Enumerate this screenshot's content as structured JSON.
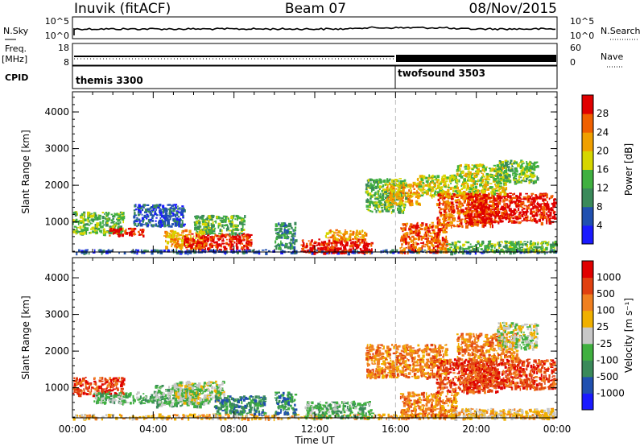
{
  "header": {
    "station": "Inuvik (fitACF)",
    "beam": "Beam 07",
    "date": "08/Nov/2015"
  },
  "nsky_panel": {
    "left_label": "N.Sky",
    "right_label": "N.Search",
    "yticks_left": [
      "10^5",
      "10^0"
    ],
    "yticks_right": [
      "10^5",
      "10^0"
    ]
  },
  "freq_panel": {
    "left_label_top": "Freq.",
    "left_label_bottom": "[MHz]",
    "right_label": "Nave",
    "yticks_left": [
      "18",
      "8"
    ],
    "yticks_right": [
      "60",
      "0"
    ]
  },
  "cpid_panel": {
    "label": "CPID",
    "segments": [
      {
        "name": "themis 3300",
        "start_hour": 0,
        "end_hour": 16
      },
      {
        "name": "twofsound 3503",
        "start_hour": 16,
        "end_hour": 24
      }
    ]
  },
  "colors": {
    "power": [
      "#1a1aff",
      "#2050b0",
      "#3a8a5a",
      "#40b040",
      "#d6d600",
      "#f0a000",
      "#f06000",
      "#e00000"
    ],
    "velocity": [
      "#1a1aff",
      "#2050b0",
      "#3a8a5a",
      "#40b040",
      "#c8c8c8",
      "#f0b000",
      "#f08020",
      "#e04010",
      "#e00000"
    ]
  },
  "chart_data": [
    {
      "type": "heatmap",
      "title": "Power",
      "xlabel": "Time UT",
      "ylabel": "Slant Range [km]",
      "xlim": [
        0,
        24
      ],
      "ylim": [
        180,
        4550
      ],
      "xticks": [
        "00:00",
        "04:00",
        "08:00",
        "12:00",
        "16:00",
        "20:00",
        "00:00"
      ],
      "yticks": [
        "1000",
        "2000",
        "3000",
        "4000"
      ],
      "colorbar": {
        "label": "Power [dB]",
        "ticks": [
          "4",
          "8",
          "12",
          "16",
          "20",
          "24",
          "28"
        ]
      },
      "regions": [
        {
          "t0": 0,
          "t1": 2.5,
          "r0": 700,
          "r1": 1300,
          "level": 3
        },
        {
          "t0": 1.8,
          "t1": 3.5,
          "r0": 650,
          "r1": 850,
          "level": 7
        },
        {
          "t0": 3.0,
          "t1": 5.5,
          "r0": 900,
          "r1": 1500,
          "level": 1
        },
        {
          "t0": 4.5,
          "t1": 6.5,
          "r0": 300,
          "r1": 800,
          "level": 5
        },
        {
          "t0": 5.5,
          "t1": 8.8,
          "r0": 250,
          "r1": 700,
          "level": 7
        },
        {
          "t0": 6.0,
          "t1": 8.5,
          "r0": 700,
          "r1": 1200,
          "level": 3
        },
        {
          "t0": 0,
          "t1": 24,
          "r0": 180,
          "r1": 260,
          "level": 1
        },
        {
          "t0": 10.0,
          "t1": 11.0,
          "r0": 300,
          "r1": 1000,
          "level": 2
        },
        {
          "t0": 11.3,
          "t1": 14.8,
          "r0": 180,
          "r1": 550,
          "level": 7
        },
        {
          "t0": 12.5,
          "t1": 14.5,
          "r0": 550,
          "r1": 800,
          "level": 5
        },
        {
          "t0": 14.5,
          "t1": 16.5,
          "r0": 1300,
          "r1": 2200,
          "level": 3
        },
        {
          "t0": 15.5,
          "t1": 17.2,
          "r0": 1500,
          "r1": 2100,
          "level": 5
        },
        {
          "t0": 16.2,
          "t1": 18.5,
          "r0": 200,
          "r1": 1000,
          "level": 6
        },
        {
          "t0": 17.0,
          "t1": 19.0,
          "r0": 1700,
          "r1": 2300,
          "level": 4
        },
        {
          "t0": 18.0,
          "t1": 21.0,
          "r0": 900,
          "r1": 1800,
          "level": 6
        },
        {
          "t0": 19.5,
          "t1": 23.9,
          "r0": 1000,
          "r1": 1800,
          "level": 7
        },
        {
          "t0": 19.0,
          "t1": 21.5,
          "r0": 1800,
          "r1": 2600,
          "level": 4
        },
        {
          "t0": 18.5,
          "t1": 23.9,
          "r0": 200,
          "r1": 500,
          "level": 3
        },
        {
          "t0": 21.0,
          "t1": 23.0,
          "r0": 2100,
          "r1": 2700,
          "level": 3
        }
      ]
    },
    {
      "type": "heatmap",
      "title": "Velocity",
      "xlabel": "Time UT",
      "ylabel": "Slant Range [km]",
      "xlim": [
        0,
        24
      ],
      "ylim": [
        180,
        4550
      ],
      "xticks": [
        "00:00",
        "04:00",
        "08:00",
        "12:00",
        "16:00",
        "20:00",
        "00:00"
      ],
      "yticks": [
        "1000",
        "2000",
        "3000",
        "4000"
      ],
      "colorbar": {
        "label": "Velocity [m s⁻¹]",
        "ticks": [
          "1000",
          "500",
          "100",
          "25",
          "-25",
          "-100",
          "-500",
          "-1000"
        ]
      },
      "regions": [
        {
          "t0": 0,
          "t1": 2.5,
          "r0": 800,
          "r1": 1300,
          "level": 7
        },
        {
          "t0": 1.0,
          "t1": 4.0,
          "r0": 600,
          "r1": 900,
          "level": 3
        },
        {
          "t0": 4.0,
          "t1": 6.5,
          "r0": 500,
          "r1": 1100,
          "level": 3
        },
        {
          "t0": 5.0,
          "t1": 7.5,
          "r0": 600,
          "r1": 1200,
          "level": 4
        },
        {
          "t0": 7.0,
          "t1": 9.5,
          "r0": 300,
          "r1": 800,
          "level": 2
        },
        {
          "t0": 0,
          "t1": 24,
          "r0": 180,
          "r1": 300,
          "level": 5
        },
        {
          "t0": 11.5,
          "t1": 14.8,
          "r0": 200,
          "r1": 650,
          "level": 3
        },
        {
          "t0": 10.0,
          "t1": 11.0,
          "r0": 300,
          "r1": 900,
          "level": 2
        },
        {
          "t0": 14.5,
          "t1": 18.5,
          "r0": 1300,
          "r1": 2200,
          "level": 6
        },
        {
          "t0": 16.2,
          "t1": 19.0,
          "r0": 200,
          "r1": 900,
          "level": 6
        },
        {
          "t0": 18.0,
          "t1": 21.0,
          "r0": 900,
          "r1": 1800,
          "level": 7
        },
        {
          "t0": 19.5,
          "t1": 23.9,
          "r0": 1000,
          "r1": 1800,
          "level": 7
        },
        {
          "t0": 19.0,
          "t1": 22.0,
          "r0": 1800,
          "r1": 2500,
          "level": 6
        },
        {
          "t0": 21.0,
          "t1": 23.0,
          "r0": 2100,
          "r1": 2800,
          "level": 4
        },
        {
          "t0": 18.5,
          "t1": 23.9,
          "r0": 200,
          "r1": 450,
          "level": 5
        }
      ]
    }
  ]
}
